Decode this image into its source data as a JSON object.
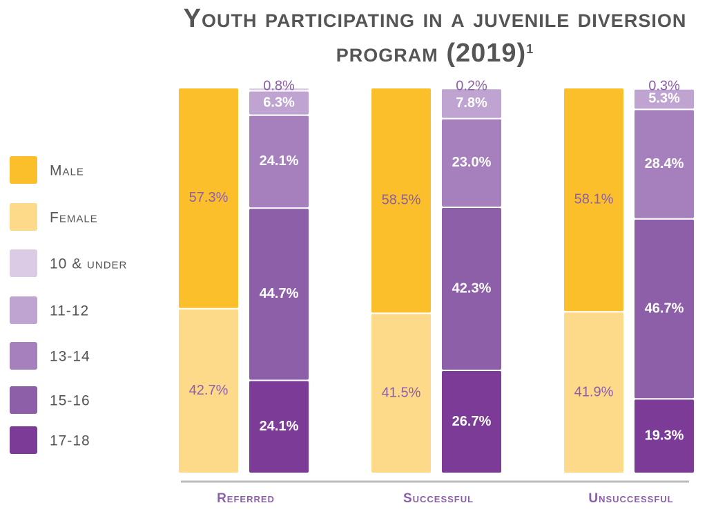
{
  "chart_data": {
    "type": "stacked_bar",
    "title": "Youth participating in a juvenile diversion program (2019)",
    "title_note": "1",
    "categories": [
      "Referred",
      "Successful",
      "Unsuccessful"
    ],
    "ylim": [
      0,
      100
    ],
    "series": [
      {
        "name": "Male",
        "stack": "gender",
        "color": "#fcbf2c",
        "values": [
          57.3,
          58.5,
          58.1
        ],
        "value_labels": [
          "57.3%",
          "58.5%",
          "58.1%"
        ]
      },
      {
        "name": "Female",
        "stack": "gender",
        "color": "#fdd98a",
        "values": [
          42.7,
          41.5,
          41.9
        ],
        "value_labels": [
          "42.7%",
          "41.5%",
          "41.9%"
        ]
      },
      {
        "name": "10 & under",
        "stack": "age",
        "color": "#dccbe5",
        "values": [
          0.8,
          0.2,
          0.3
        ],
        "value_labels": [
          "0.8%",
          "0.2%",
          "0.3%"
        ]
      },
      {
        "name": "11-12",
        "stack": "age",
        "color": "#bfa3d1",
        "values": [
          6.3,
          7.8,
          5.3
        ],
        "value_labels": [
          "6.3%",
          "7.8%",
          "5.3%"
        ]
      },
      {
        "name": "13-14",
        "stack": "age",
        "color": "#a680bd",
        "values": [
          24.1,
          23.0,
          28.4
        ],
        "value_labels": [
          "24.1%",
          "23.0%",
          "28.4%"
        ]
      },
      {
        "name": "15-16",
        "stack": "age",
        "color": "#8c5fa8",
        "values": [
          44.7,
          42.3,
          46.7
        ],
        "value_labels": [
          "44.7%",
          "42.3%",
          "46.7%"
        ]
      },
      {
        "name": "17-18",
        "stack": "age",
        "color": "#7b3b96",
        "values": [
          24.1,
          26.7,
          19.3
        ],
        "value_labels": [
          "24.1%",
          "26.7%",
          "19.3%"
        ]
      }
    ]
  }
}
